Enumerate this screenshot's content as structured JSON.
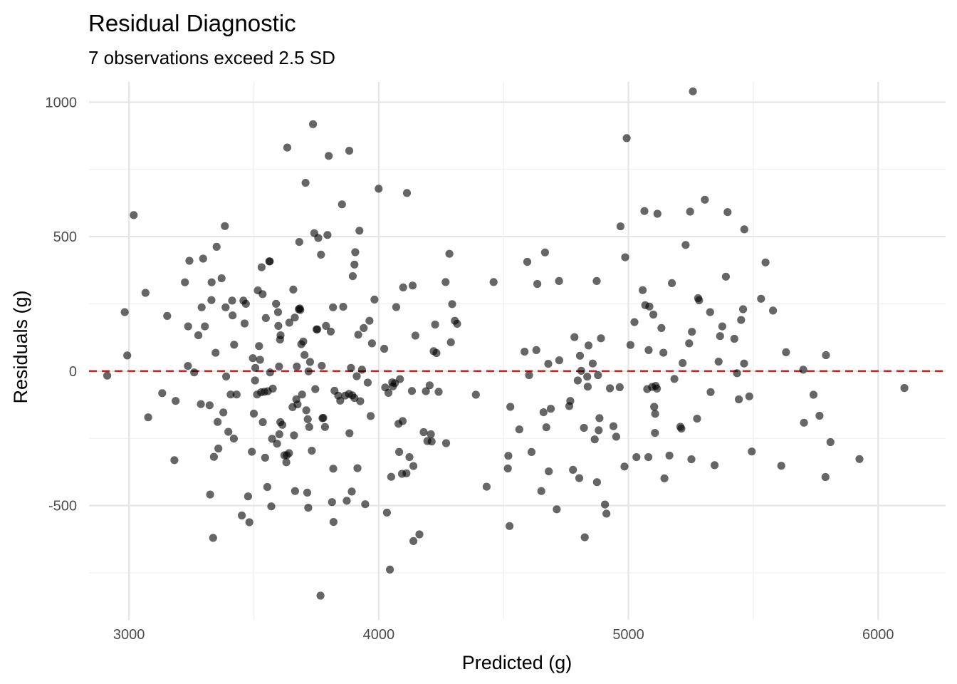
{
  "chart_data": {
    "type": "scatter",
    "title": "Residual Diagnostic",
    "subtitle": "7 observations exceed 2.5 SD",
    "xlabel": "Predicted (g)",
    "ylabel": "Residuals (g)",
    "xlim": [
      2840,
      6270
    ],
    "ylim": [
      -925,
      1075
    ],
    "x_ticks": [
      3000,
      4000,
      5000,
      6000
    ],
    "y_ticks": [
      -500,
      0,
      500,
      1000
    ],
    "grid": true,
    "reference_line": {
      "y": 0,
      "style": "dashed",
      "color": "#e41a1c"
    },
    "point_color": "#000000",
    "point_opacity": 0.6,
    "points": [
      [
        2913,
        -17
      ],
      [
        2983,
        219
      ],
      [
        2993,
        58
      ],
      [
        3019,
        580
      ],
      [
        3066,
        291
      ],
      [
        3077,
        -172
      ],
      [
        3133,
        -82
      ],
      [
        3153,
        205
      ],
      [
        3182,
        -331
      ],
      [
        3187,
        -111
      ],
      [
        3224,
        330
      ],
      [
        3236,
        19
      ],
      [
        3237,
        166
      ],
      [
        3242,
        410
      ],
      [
        3261,
        -5
      ],
      [
        3278,
        133
      ],
      [
        3288,
        -123
      ],
      [
        3291,
        237
      ],
      [
        3297,
        418
      ],
      [
        3304,
        166
      ],
      [
        3323,
        -127
      ],
      [
        3325,
        -459
      ],
      [
        3331,
        330
      ],
      [
        3330,
        264
      ],
      [
        3337,
        -620
      ],
      [
        3340,
        -319
      ],
      [
        3347,
        68
      ],
      [
        3351,
        462
      ],
      [
        3355,
        -189
      ],
      [
        3358,
        -288
      ],
      [
        3371,
        345
      ],
      [
        3378,
        -154
      ],
      [
        3384,
        539
      ],
      [
        3387,
        237
      ],
      [
        3389,
        -20
      ],
      [
        3398,
        -226
      ],
      [
        3407,
        -87
      ],
      [
        3413,
        262
      ],
      [
        3415,
        207
      ],
      [
        3420,
        -251
      ],
      [
        3421,
        98
      ],
      [
        3431,
        -87
      ],
      [
        3452,
        -537
      ],
      [
        3458,
        262
      ],
      [
        3463,
        177
      ],
      [
        3468,
        250
      ],
      [
        3477,
        -466
      ],
      [
        3482,
        -562
      ],
      [
        3492,
        -300
      ],
      [
        3496,
        48
      ],
      [
        3500,
        -158
      ],
      [
        3505,
        -35
      ],
      [
        3506,
        12
      ],
      [
        3513,
        -87
      ],
      [
        3516,
        300
      ],
      [
        3521,
        93
      ],
      [
        3525,
        42
      ],
      [
        3529,
        -79
      ],
      [
        3531,
        386
      ],
      [
        3535,
        286
      ],
      [
        3536,
        -190
      ],
      [
        3542,
        -77
      ],
      [
        3545,
        -322
      ],
      [
        3548,
        197
      ],
      [
        3554,
        -431
      ],
      [
        3556,
        -75
      ],
      [
        3562,
        408
      ],
      [
        3564,
        408
      ],
      [
        3565,
        -5
      ],
      [
        3570,
        -503
      ],
      [
        3573,
        -252
      ],
      [
        3576,
        -65
      ],
      [
        3589,
        250
      ],
      [
        3593,
        -270
      ],
      [
        3597,
        219
      ],
      [
        3598,
        168
      ],
      [
        3601,
        17
      ],
      [
        3602,
        -235
      ],
      [
        3605,
        117
      ],
      [
        3607,
        133
      ],
      [
        3606,
        -190
      ],
      [
        3614,
        -200
      ],
      [
        3622,
        -313
      ],
      [
        3630,
        -339
      ],
      [
        3632,
        -313
      ],
      [
        3634,
        831
      ],
      [
        3641,
        -305
      ],
      [
        3642,
        180
      ],
      [
        3655,
        -134
      ],
      [
        3658,
        303
      ],
      [
        3661,
        -239
      ],
      [
        3664,
        199
      ],
      [
        3665,
        -446
      ],
      [
        3670,
        -105
      ],
      [
        3672,
        17
      ],
      [
        3675,
        -124
      ],
      [
        3680,
        230
      ],
      [
        3684,
        233
      ],
      [
        3682,
        480
      ],
      [
        3686,
        227
      ],
      [
        3690,
        100
      ],
      [
        3693,
        -87
      ],
      [
        3698,
        110
      ],
      [
        3703,
        60
      ],
      [
        3707,
        700
      ],
      [
        3710,
        -146
      ],
      [
        3714,
        -452
      ],
      [
        3716,
        -179
      ],
      [
        3718,
        -508
      ],
      [
        3719,
        -1
      ],
      [
        3722,
        -208
      ],
      [
        3725,
        34
      ],
      [
        3732,
        -296
      ],
      [
        3737,
        918
      ],
      [
        3742,
        513
      ],
      [
        3746,
        -67
      ],
      [
        3751,
        155
      ],
      [
        3754,
        155
      ],
      [
        3758,
        495
      ],
      [
        3767,
        -835
      ],
      [
        3769,
        433
      ],
      [
        3772,
        20
      ],
      [
        3775,
        -175
      ],
      [
        3778,
        -174
      ],
      [
        3785,
        -208
      ],
      [
        3789,
        168
      ],
      [
        3795,
        506
      ],
      [
        3800,
        800
      ],
      [
        3808,
        147
      ],
      [
        3813,
        -487
      ],
      [
        3817,
        237
      ],
      [
        3818,
        -363
      ],
      [
        3819,
        -561
      ],
      [
        3823,
        -73
      ],
      [
        3838,
        -91
      ],
      [
        3846,
        -110
      ],
      [
        3853,
        620
      ],
      [
        3858,
        239
      ],
      [
        3866,
        -91
      ],
      [
        3872,
        -482
      ],
      [
        3881,
        -85
      ],
      [
        3882,
        819
      ],
      [
        3883,
        -231
      ],
      [
        3889,
        12
      ],
      [
        3892,
        -448
      ],
      [
        3894,
        -90
      ],
      [
        3896,
        353
      ],
      [
        3903,
        -100
      ],
      [
        3903,
        396
      ],
      [
        3906,
        442
      ],
      [
        3912,
        -19
      ],
      [
        3915,
        -361
      ],
      [
        3918,
        135
      ],
      [
        3923,
        522
      ],
      [
        3926,
        -112
      ],
      [
        3933,
        5
      ],
      [
        3940,
        160
      ],
      [
        3946,
        -495
      ],
      [
        3956,
        -43
      ],
      [
        3963,
        187
      ],
      [
        3968,
        -167
      ],
      [
        3973,
        103
      ],
      [
        3983,
        266
      ],
      [
        4000,
        678
      ],
      [
        4022,
        83
      ],
      [
        4026,
        -61
      ],
      [
        4033,
        -526
      ],
      [
        4039,
        -81
      ],
      [
        4045,
        -738
      ],
      [
        4050,
        -393
      ],
      [
        4054,
        -42
      ],
      [
        4057,
        -57
      ],
      [
        4065,
        -45
      ],
      [
        4070,
        238
      ],
      [
        4079,
        -196
      ],
      [
        4082,
        -301
      ],
      [
        4085,
        -30
      ],
      [
        4093,
        -382
      ],
      [
        4096,
        -186
      ],
      [
        4098,
        311
      ],
      [
        4111,
        -380
      ],
      [
        4113,
        662
      ],
      [
        4123,
        -320
      ],
      [
        4133,
        -74
      ],
      [
        4136,
        318
      ],
      [
        4139,
        -353
      ],
      [
        4139,
        -632
      ],
      [
        4147,
        132
      ],
      [
        4163,
        -607
      ],
      [
        4180,
        -227
      ],
      [
        4189,
        -75
      ],
      [
        4195,
        -260
      ],
      [
        4204,
        -53
      ],
      [
        4209,
        -235
      ],
      [
        4212,
        -262
      ],
      [
        4220,
        74
      ],
      [
        4226,
        173
      ],
      [
        4231,
        67
      ],
      [
        4240,
        -77
      ],
      [
        4268,
        331
      ],
      [
        4270,
        -268
      ],
      [
        4283,
        436
      ],
      [
        4289,
        107
      ],
      [
        4294,
        249
      ],
      [
        4305,
        187
      ],
      [
        4314,
        176
      ],
      [
        4389,
        -88
      ],
      [
        4432,
        -430
      ],
      [
        4460,
        331
      ],
      [
        4524,
        -576
      ],
      [
        4517,
        -362
      ],
      [
        4519,
        -315
      ],
      [
        4527,
        -133
      ],
      [
        4563,
        -217
      ],
      [
        4584,
        72
      ],
      [
        4595,
        406
      ],
      [
        4602,
        -15
      ],
      [
        4612,
        -301
      ],
      [
        4631,
        78
      ],
      [
        4635,
        324
      ],
      [
        4651,
        -446
      ],
      [
        4660,
        -153
      ],
      [
        4666,
        441
      ],
      [
        4671,
        -209
      ],
      [
        4679,
        27
      ],
      [
        4681,
        -373
      ],
      [
        4689,
        -140
      ],
      [
        4713,
        -514
      ],
      [
        4722,
        335
      ],
      [
        4723,
        40
      ],
      [
        4763,
        -130
      ],
      [
        4767,
        -111
      ],
      [
        4778,
        -367
      ],
      [
        4784,
        126
      ],
      [
        4797,
        -35
      ],
      [
        4803,
        -398
      ],
      [
        4806,
        57
      ],
      [
        4811,
        1
      ],
      [
        4822,
        -211
      ],
      [
        4825,
        -618
      ],
      [
        4835,
        -21
      ],
      [
        4837,
        -58
      ],
      [
        4840,
        95
      ],
      [
        4857,
        28
      ],
      [
        4865,
        -254
      ],
      [
        4873,
        335
      ],
      [
        4874,
        -413
      ],
      [
        4878,
        -15
      ],
      [
        4881,
        -220
      ],
      [
        4884,
        -175
      ],
      [
        4890,
        122
      ],
      [
        4906,
        -496
      ],
      [
        4912,
        -530
      ],
      [
        4926,
        -64
      ],
      [
        4940,
        -205
      ],
      [
        4951,
        -244
      ],
      [
        4965,
        -60
      ],
      [
        4968,
        538
      ],
      [
        4984,
        -355
      ],
      [
        4987,
        423
      ],
      [
        4993,
        866
      ],
      [
        5008,
        97
      ],
      [
        5024,
        182
      ],
      [
        5032,
        -320
      ],
      [
        5057,
        301
      ],
      [
        5064,
        595
      ],
      [
        5067,
        245
      ],
      [
        5075,
        -67
      ],
      [
        5080,
        -320
      ],
      [
        5084,
        240
      ],
      [
        5081,
        78
      ],
      [
        5095,
        -59
      ],
      [
        5100,
        210
      ],
      [
        5103,
        -133
      ],
      [
        5106,
        -230
      ],
      [
        5107,
        -159
      ],
      [
        5109,
        -55
      ],
      [
        5116,
        585
      ],
      [
        5114,
        -65
      ],
      [
        5132,
        160
      ],
      [
        5140,
        68
      ],
      [
        5144,
        -399
      ],
      [
        5164,
        -314
      ],
      [
        5174,
        327
      ],
      [
        5184,
        -29
      ],
      [
        5208,
        -207
      ],
      [
        5212,
        -214
      ],
      [
        5217,
        30
      ],
      [
        5229,
        469
      ],
      [
        5243,
        103
      ],
      [
        5247,
        593
      ],
      [
        5252,
        -328
      ],
      [
        5254,
        146
      ],
      [
        5258,
        1040
      ],
      [
        5275,
        -177
      ],
      [
        5279,
        271
      ],
      [
        5283,
        263
      ],
      [
        5306,
        637
      ],
      [
        5327,
        219
      ],
      [
        5329,
        -78
      ],
      [
        5345,
        -350
      ],
      [
        5361,
        35
      ],
      [
        5367,
        130
      ],
      [
        5376,
        166
      ],
      [
        5390,
        351
      ],
      [
        5397,
        591
      ],
      [
        5424,
        120
      ],
      [
        5435,
        -8
      ],
      [
        5442,
        -105
      ],
      [
        5451,
        190
      ],
      [
        5459,
        230
      ],
      [
        5463,
        28
      ],
      [
        5464,
        527
      ],
      [
        5484,
        -94
      ],
      [
        5494,
        -299
      ],
      [
        5531,
        269
      ],
      [
        5549,
        404
      ],
      [
        5579,
        225
      ],
      [
        5612,
        -352
      ],
      [
        5631,
        70
      ],
      [
        5700,
        5
      ],
      [
        5703,
        -192
      ],
      [
        5741,
        -88
      ],
      [
        5765,
        -166
      ],
      [
        5789,
        -394
      ],
      [
        5791,
        59
      ],
      [
        5809,
        -264
      ],
      [
        5925,
        -327
      ],
      [
        6105,
        -63
      ]
    ]
  }
}
